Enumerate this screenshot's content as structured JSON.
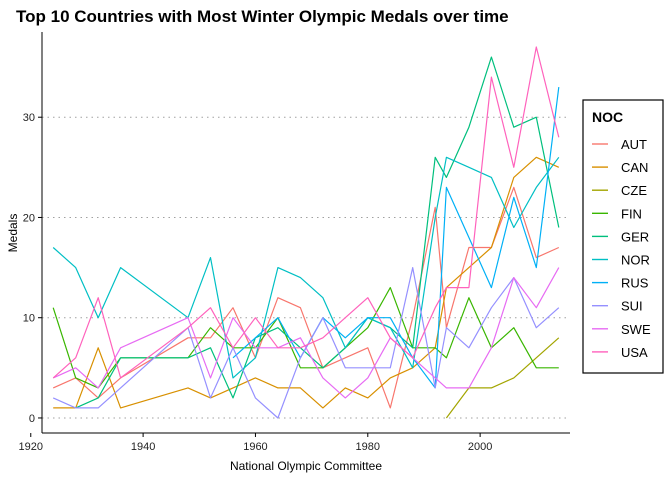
{
  "chart_data": {
    "type": "line",
    "title": "Top 10 Countries with Most Winter Olympic Medals over time",
    "xlabel": "National Olympic Committee",
    "ylabel": "Medals",
    "xlim": [
      1922,
      2016
    ],
    "ylim": [
      -1.5,
      38.5
    ],
    "xticks": [
      1920,
      1940,
      1960,
      1980,
      2000
    ],
    "yticks": [
      0,
      10,
      20,
      30
    ],
    "grid": "horizontal dotted",
    "legend_title": "NOC",
    "legend_position": "right",
    "x": [
      1924,
      1928,
      1932,
      1936,
      1948,
      1952,
      1956,
      1960,
      1964,
      1968,
      1972,
      1976,
      1980,
      1984,
      1988,
      1992,
      1994,
      1998,
      2002,
      2006,
      2010,
      2014
    ],
    "series": [
      {
        "name": "AUT",
        "color": "#F8766D",
        "values": [
          3,
          4,
          2,
          4,
          8,
          8,
          11,
          6,
          12,
          11,
          5,
          6,
          7,
          1,
          10,
          21,
          9,
          17,
          17,
          23,
          16,
          17
        ]
      },
      {
        "name": "CAN",
        "color": "#D89000",
        "values": [
          1,
          1,
          7,
          1,
          3,
          2,
          3,
          4,
          3,
          3,
          1,
          3,
          2,
          4,
          5,
          7,
          13,
          15,
          17,
          24,
          26,
          25
        ]
      },
      {
        "name": "CZE",
        "color": "#A3A500",
        "values": [
          null,
          null,
          null,
          null,
          null,
          null,
          null,
          null,
          null,
          null,
          null,
          null,
          null,
          null,
          null,
          null,
          0,
          3,
          3,
          4,
          6,
          8
        ]
      },
      {
        "name": "FIN",
        "color": "#39B600",
        "values": [
          11,
          4,
          3,
          6,
          6,
          9,
          7,
          7,
          10,
          5,
          5,
          7,
          9,
          13,
          7,
          7,
          6,
          12,
          7,
          9,
          5,
          5
        ]
      },
      {
        "name": "GER",
        "color": "#00BF7D",
        "values": [
          null,
          1,
          2,
          6,
          6,
          7,
          2,
          8,
          9,
          7,
          5,
          7,
          10,
          9,
          7,
          26,
          24,
          29,
          36,
          29,
          30,
          19
        ]
      },
      {
        "name": "NOR",
        "color": "#00BFC4",
        "values": [
          17,
          15,
          10,
          15,
          10,
          16,
          4,
          6,
          15,
          14,
          12,
          7,
          10,
          9,
          5,
          20,
          26,
          25,
          24,
          19,
          23,
          26
        ]
      },
      {
        "name": "RUS",
        "color": "#00B0F6",
        "values": [
          null,
          null,
          null,
          null,
          null,
          null,
          6,
          8,
          10,
          6,
          10,
          8,
          10,
          10,
          6,
          3,
          23,
          18,
          13,
          22,
          15,
          33
        ]
      },
      {
        "name": "SUI",
        "color": "#9590FF",
        "values": [
          2,
          1,
          1,
          3,
          9,
          2,
          7,
          2,
          0,
          6,
          10,
          5,
          5,
          5,
          15,
          3,
          9,
          7,
          11,
          14,
          9,
          11
        ]
      },
      {
        "name": "SWE",
        "color": "#E76BF3",
        "values": [
          4,
          5,
          3,
          7,
          10,
          4,
          10,
          7,
          7,
          8,
          4,
          2,
          4,
          8,
          6,
          4,
          3,
          3,
          7,
          14,
          11,
          15
        ]
      },
      {
        "name": "USA",
        "color": "#FF62BC",
        "values": [
          4,
          6,
          12,
          4,
          9,
          11,
          7,
          10,
          7,
          7,
          8,
          10,
          12,
          8,
          6,
          11,
          13,
          13,
          34,
          25,
          37,
          28
        ]
      }
    ]
  }
}
